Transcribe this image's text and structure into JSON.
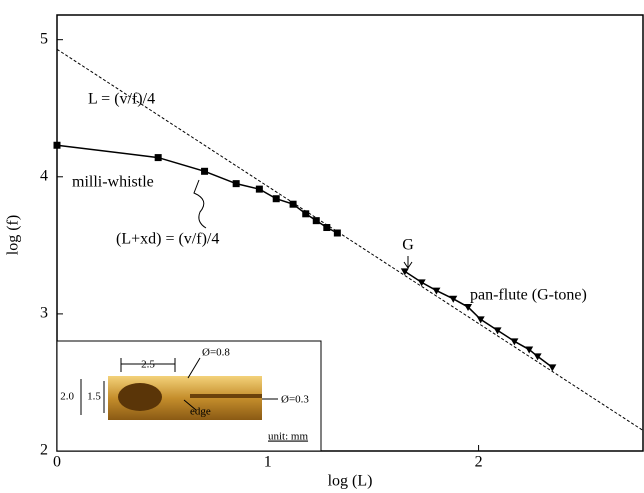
{
  "chart_data": {
    "type": "line",
    "x_label": "log (L)",
    "y_label": "log (f)",
    "xlim": [
      0,
      2.78
    ],
    "ylim": [
      2,
      5.18
    ],
    "xticks": [
      0,
      1,
      2
    ],
    "yticks": [
      2,
      3,
      4,
      5
    ],
    "series": [
      {
        "color": "#000000",
        "marker": "square",
        "dashed": false,
        "x": [
          0,
          0.48,
          0.7,
          0.85,
          0.96,
          1.04,
          1.12,
          1.18,
          1.23,
          1.28,
          1.33
        ],
        "values": [
          4.23,
          4.14,
          4.04,
          3.95,
          3.91,
          3.84,
          3.8,
          3.73,
          3.68,
          3.63,
          3.59
        ]
      },
      {
        "color": "#000000",
        "marker": "triangle",
        "dashed": false,
        "x": [
          1.65,
          1.73,
          1.8,
          1.88,
          1.95,
          2.01,
          2.09,
          2.17,
          2.24,
          2.28,
          2.35
        ],
        "values": [
          3.31,
          3.23,
          3.17,
          3.11,
          3.05,
          2.96,
          2.88,
          2.8,
          2.74,
          2.69,
          2.61
        ]
      },
      {
        "color": "#000000",
        "marker": "none",
        "dashed": true,
        "x": [
          0,
          2.78
        ],
        "values": [
          4.93,
          2.15
        ]
      }
    ],
    "annotations": [
      "L = (v/f)/4",
      "milli-whistle",
      "(L+xd) = (v/f)/4",
      "G",
      "pan-flute (G-tone)"
    ],
    "inset": {
      "labels": [
        "2.5",
        "Ø=0.8",
        "2.0",
        "1.5",
        "Ø=0.3",
        "edge",
        "unit: mm"
      ]
    }
  }
}
